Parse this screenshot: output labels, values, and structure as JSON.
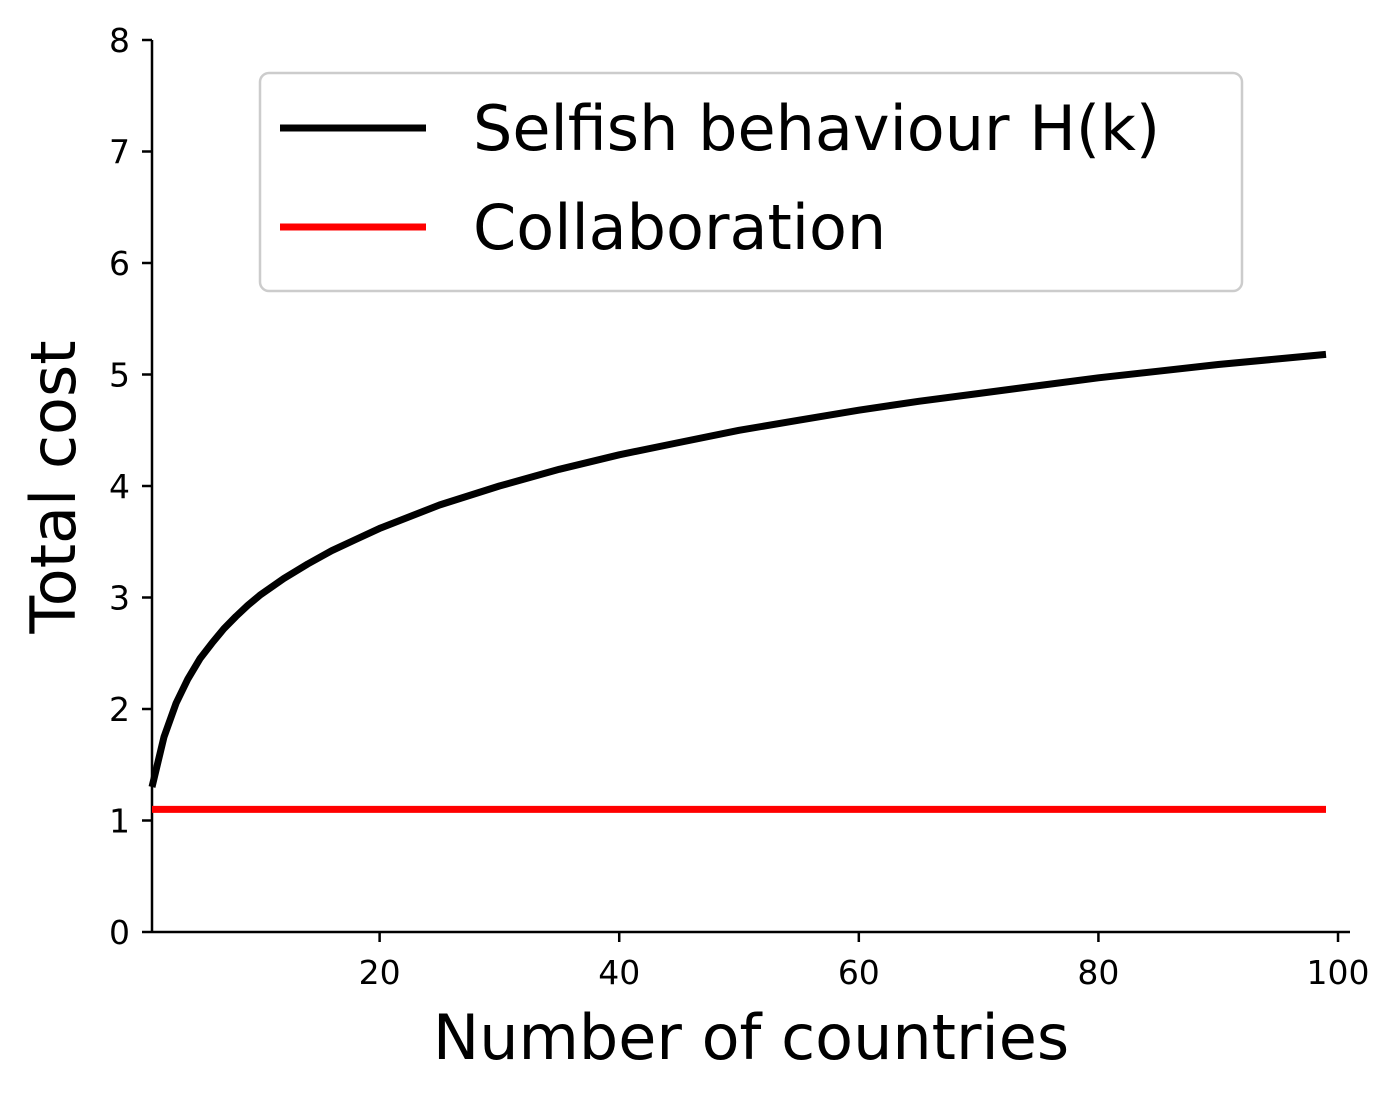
{
  "chart_data": {
    "type": "line",
    "xlabel": "Number of countries",
    "ylabel": "Total cost",
    "xlim": [
      1,
      101
    ],
    "ylim": [
      0,
      8
    ],
    "xticks": [
      20,
      40,
      60,
      80,
      100
    ],
    "yticks": [
      0,
      1,
      2,
      3,
      4,
      5,
      6,
      7,
      8
    ],
    "grid": false,
    "legend_position": "top-right",
    "series": [
      {
        "name": "Selfish behaviour H(k)",
        "color": "#000000",
        "x": [
          1,
          2,
          3,
          4,
          5,
          6,
          7,
          8,
          9,
          10,
          12,
          14,
          16,
          18,
          20,
          25,
          30,
          35,
          40,
          45,
          50,
          55,
          60,
          65,
          70,
          75,
          80,
          85,
          90,
          95,
          99
        ],
        "y": [
          1.3,
          1.75,
          2.05,
          2.27,
          2.45,
          2.59,
          2.72,
          2.83,
          2.93,
          3.02,
          3.17,
          3.3,
          3.42,
          3.52,
          3.62,
          3.83,
          4.0,
          4.15,
          4.28,
          4.39,
          4.5,
          4.59,
          4.68,
          4.76,
          4.83,
          4.9,
          4.97,
          5.03,
          5.09,
          5.14,
          5.18
        ]
      },
      {
        "name": "Collaboration",
        "color": "#ff0000",
        "x": [
          1,
          99
        ],
        "y": [
          1.1,
          1.1
        ]
      }
    ]
  }
}
